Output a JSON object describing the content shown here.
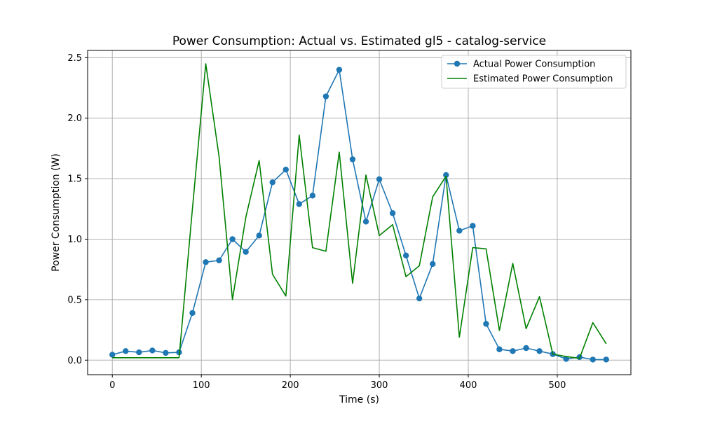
{
  "chart_data": {
    "type": "line",
    "title": "Power Consumption: Actual vs. Estimated gl5 - catalog-service",
    "xlabel": "Time (s)",
    "ylabel": "Power Consumption (W)",
    "xlim": [
      -27.75,
      582.75
    ],
    "ylim": [
      -0.12,
      2.56
    ],
    "xticks": [
      0,
      100,
      200,
      300,
      400,
      500
    ],
    "yticks": [
      0.0,
      0.5,
      1.0,
      1.5,
      2.0,
      2.5
    ],
    "xtick_labels": [
      "0",
      "100",
      "200",
      "300",
      "400",
      "500"
    ],
    "ytick_labels": [
      "0.0",
      "0.5",
      "1.0",
      "1.5",
      "2.0",
      "2.5"
    ],
    "grid": true,
    "legend_position": "top-right",
    "series": [
      {
        "name": "Actual Power Consumption",
        "color": "#1f77b4",
        "marker": "circle",
        "x": [
          0,
          15,
          30,
          45,
          60,
          75,
          90,
          105,
          120,
          135,
          150,
          165,
          180,
          195,
          210,
          225,
          240,
          255,
          270,
          285,
          300,
          315,
          330,
          345,
          360,
          375,
          390,
          405,
          420,
          435,
          450,
          465,
          480,
          495,
          510,
          525,
          540,
          555
        ],
        "y": [
          0.045,
          0.075,
          0.065,
          0.08,
          0.06,
          0.065,
          0.39,
          0.81,
          0.825,
          1.0,
          0.895,
          1.03,
          1.47,
          1.575,
          1.29,
          1.36,
          2.18,
          2.4,
          1.66,
          1.145,
          1.495,
          1.215,
          0.865,
          0.51,
          0.795,
          1.53,
          1.07,
          1.11,
          0.3,
          0.09,
          0.075,
          0.1,
          0.075,
          0.05,
          0.01,
          0.025,
          0.005,
          0.005
        ]
      },
      {
        "name": "Estimated Power Consumption",
        "color": "#008000",
        "marker": "none",
        "x": [
          0,
          15,
          30,
          45,
          60,
          75,
          90,
          105,
          120,
          135,
          150,
          165,
          180,
          195,
          210,
          225,
          240,
          255,
          270,
          285,
          300,
          315,
          330,
          345,
          360,
          375,
          390,
          405,
          420,
          435,
          450,
          465,
          480,
          495,
          510,
          525,
          540,
          555
        ],
        "y": [
          0.02,
          0.02,
          0.02,
          0.02,
          0.02,
          0.02,
          1.25,
          2.45,
          1.68,
          0.5,
          1.18,
          1.65,
          0.71,
          0.53,
          1.86,
          0.93,
          0.9,
          1.72,
          0.635,
          1.53,
          1.03,
          1.12,
          0.69,
          0.78,
          1.35,
          1.52,
          0.19,
          0.93,
          0.92,
          0.245,
          0.8,
          0.26,
          0.525,
          0.05,
          0.03,
          0.015,
          0.31,
          0.135
        ]
      }
    ]
  }
}
